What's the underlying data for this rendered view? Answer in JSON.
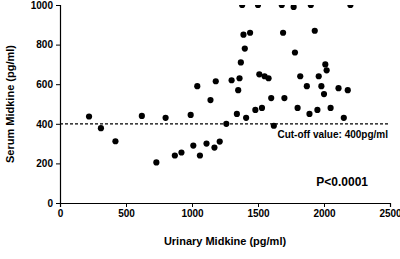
{
  "chart_data": {
    "type": "scatter",
    "x_label": "Urinary Midkine (pg/ml)",
    "y_label": "Serum Midkine (pg/ml)",
    "x": [
      220,
      310,
      420,
      620,
      730,
      800,
      870,
      920,
      990,
      1010,
      1040,
      1060,
      1110,
      1140,
      1170,
      1180,
      1210,
      1260,
      1300,
      1340,
      1350,
      1360,
      1370,
      1380,
      1390,
      1400,
      1410,
      1440,
      1480,
      1500,
      1510,
      1530,
      1550,
      1580,
      1600,
      1620,
      1680,
      1690,
      1700,
      1770,
      1780,
      1800,
      1820,
      1870,
      1890,
      1900,
      1930,
      1950,
      1960,
      1980,
      2000,
      2010,
      2020,
      2050,
      2110,
      2150,
      2180,
      2200
    ],
    "values": [
      437,
      378,
      312,
      440,
      205,
      430,
      240,
      255,
      445,
      290,
      590,
      240,
      300,
      520,
      280,
      615,
      310,
      400,
      620,
      450,
      570,
      630,
      710,
      1000,
      850,
      780,
      430,
      860,
      470,
      1000,
      650,
      480,
      640,
      630,
      530,
      390,
      1000,
      860,
      530,
      990,
      760,
      480,
      640,
      590,
      450,
      1000,
      870,
      470,
      640,
      590,
      550,
      700,
      670,
      480,
      580,
      430,
      570,
      1000
    ],
    "color": "#000000",
    "marker": "circle",
    "xlim": [
      0,
      2500
    ],
    "xticks": [
      0,
      500,
      1000,
      1500,
      2000,
      2500
    ],
    "ylim": [
      0,
      1000
    ],
    "yticks": [
      0,
      200,
      400,
      600,
      800,
      1000
    ],
    "grid": false,
    "annotations": [
      {
        "text": "Cut-off value: 400pg/ml",
        "y": 400
      },
      {
        "text": "P<0.0001"
      }
    ]
  }
}
